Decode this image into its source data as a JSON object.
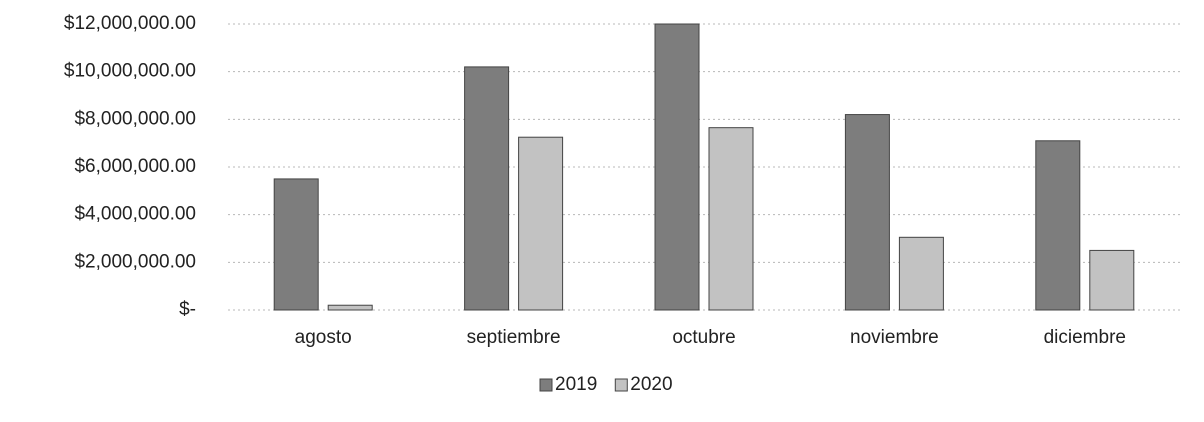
{
  "chart_data": {
    "type": "bar",
    "categories": [
      "agosto",
      "septiembre",
      "octubre",
      "noviembre",
      "diciembre"
    ],
    "series": [
      {
        "name": "2019",
        "color": "#7d7d7d",
        "values": [
          5500000,
          10200000,
          12000000,
          8200000,
          7100000
        ]
      },
      {
        "name": "2020",
        "color": "#c2c2c2",
        "values": [
          200000,
          7250000,
          7650000,
          3050000,
          2500000
        ]
      }
    ],
    "ylim": [
      0,
      12000000
    ],
    "yticks": [
      {
        "value": 0,
        "label": "$-"
      },
      {
        "value": 2000000,
        "label": "$2,000,000.00"
      },
      {
        "value": 4000000,
        "label": "$4,000,000.00"
      },
      {
        "value": 6000000,
        "label": "$6,000,000.00"
      },
      {
        "value": 8000000,
        "label": "$8,000,000.00"
      },
      {
        "value": 10000000,
        "label": "$10,000,000.00"
      },
      {
        "value": 12000000,
        "label": "$12,000,000.00"
      }
    ],
    "grid": true,
    "legend": "bottom"
  }
}
